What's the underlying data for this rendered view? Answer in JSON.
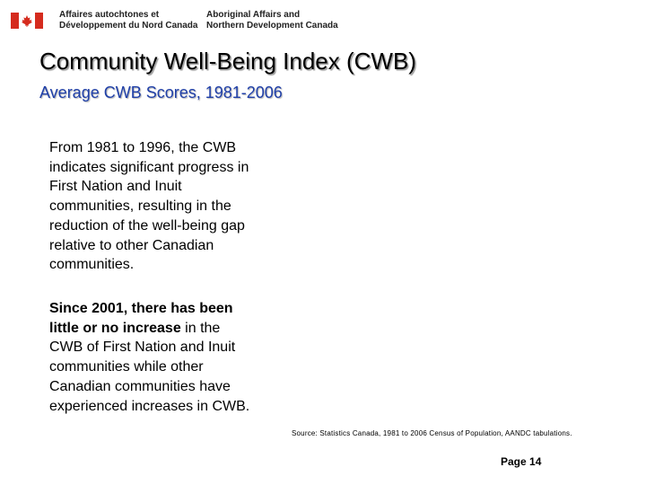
{
  "header": {
    "logo_icon": "canada-flag-icon",
    "dept_fr_line1": "Affaires autochtones et",
    "dept_fr_line2": "Développement du Nord Canada",
    "dept_en_line1": "Aboriginal Affairs and",
    "dept_en_line2": "Northern Development Canada"
  },
  "slide": {
    "title": "Community Well-Being Index (CWB)",
    "subtitle": "Average CWB Scores, 1981-2006",
    "paragraph1": "From 1981 to 1996, the CWB indicates significant progress in First Nation and Inuit communities, resulting in the reduction of the well-being gap relative to other Canadian communities.",
    "paragraph2_bold": "Since 2001, there has been little or no increase",
    "paragraph2_rest": " in the CWB of First Nation and Inuit communities while other Canadian communities have experienced increases in CWB.",
    "source": "Source: Statistics Canada, 1981 to 2006 Census of Population, AANDC tabulations.",
    "page": "Page 14"
  },
  "colors": {
    "subtitle": "#1f3fa8",
    "flag_red": "#d52b1e"
  }
}
